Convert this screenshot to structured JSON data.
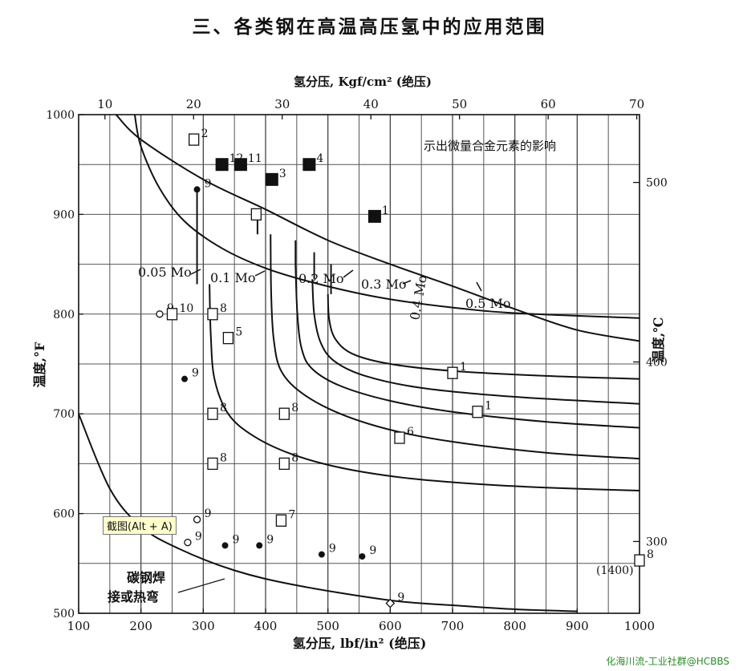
{
  "title": "三、各类钢在高温高压氢中的应用范围",
  "tooltip": "截图(Alt + A)",
  "watermark": "化海川流-工业社群@HCBBS",
  "chart_data": {
    "type": "line",
    "x_bottom": {
      "label": "氢分压, lbf/in² (绝压)",
      "min": 100,
      "max": 1000,
      "ticks": [
        100,
        200,
        300,
        400,
        500,
        600,
        700,
        800,
        900,
        1000
      ]
    },
    "x_top": {
      "label": "氢分压, Kgf/cm² (绝压)",
      "min": 7.03,
      "max": 70.3,
      "ticks": [
        10,
        20,
        30,
        40,
        50,
        60,
        70
      ]
    },
    "y_left": {
      "label": "温度,°F",
      "min": 500,
      "max": 1000,
      "ticks": [
        500,
        600,
        700,
        800,
        900,
        1000
      ]
    },
    "y_right": {
      "label": "温度,℃",
      "ticks": [
        300,
        400,
        500
      ]
    },
    "grid": true,
    "annotation": "示出微量合金元素的影响",
    "curve_labels": [
      "0.05 Mo",
      "0.1 Mo",
      "0.2 Mo",
      "0.3 Mo",
      "0.4 Mo",
      "0.5 Mo"
    ],
    "series": [
      {
        "name": "碳钢焊接或热弯",
        "points": [
          [
            100,
            700
          ],
          [
            150,
            625
          ],
          [
            200,
            587
          ],
          [
            260,
            565
          ],
          [
            350,
            543
          ],
          [
            450,
            528
          ],
          [
            600,
            513
          ],
          [
            700,
            508
          ],
          [
            800,
            504
          ],
          [
            900,
            502
          ]
        ]
      },
      {
        "name": "",
        "points": [
          [
            190,
            1000
          ],
          [
            200,
            968
          ],
          [
            230,
            926
          ],
          [
            270,
            893
          ],
          [
            330,
            866
          ],
          [
            400,
            846
          ],
          [
            480,
            831
          ],
          [
            580,
            817
          ],
          [
            680,
            808
          ],
          [
            800,
            801
          ],
          [
            1000,
            796
          ]
        ]
      },
      {
        "name": "",
        "points": [
          [
            310,
            830
          ],
          [
            312,
            780
          ],
          [
            318,
            735
          ],
          [
            340,
            700
          ],
          [
            380,
            678
          ],
          [
            440,
            660
          ],
          [
            520,
            646
          ],
          [
            620,
            636
          ],
          [
            730,
            630
          ],
          [
            850,
            626
          ],
          [
            1000,
            623
          ]
        ]
      },
      {
        "name": "",
        "points": [
          [
            408,
            880
          ],
          [
            409,
            820
          ],
          [
            413,
            775
          ],
          [
            425,
            743
          ],
          [
            460,
            720
          ],
          [
            520,
            700
          ],
          [
            600,
            684
          ],
          [
            700,
            672
          ],
          [
            850,
            661
          ],
          [
            1000,
            655
          ]
        ]
      },
      {
        "name": "",
        "points": [
          [
            448,
            850
          ],
          [
            451,
            800
          ],
          [
            458,
            765
          ],
          [
            475,
            745
          ],
          [
            520,
            728
          ],
          [
            600,
            713
          ],
          [
            700,
            702
          ],
          [
            850,
            692
          ],
          [
            1000,
            686
          ]
        ]
      },
      {
        "name": "",
        "points": [
          [
            475,
            835
          ],
          [
            478,
            800
          ],
          [
            488,
            772
          ],
          [
            510,
            753
          ],
          [
            560,
            738
          ],
          [
            650,
            726
          ],
          [
            800,
            717
          ],
          [
            1000,
            710
          ]
        ]
      },
      {
        "name": "",
        "points": [
          [
            500,
            820
          ],
          [
            502,
            795
          ],
          [
            512,
            775
          ],
          [
            540,
            760
          ],
          [
            600,
            750
          ],
          [
            700,
            743
          ],
          [
            850,
            738
          ],
          [
            1000,
            735
          ]
        ]
      },
      {
        "name": "",
        "points": [
          [
            160,
            1000
          ],
          [
            200,
            975
          ],
          [
            300,
            935
          ],
          [
            400,
            905
          ],
          [
            500,
            874
          ],
          [
            600,
            850
          ],
          [
            700,
            828
          ],
          [
            800,
            805
          ],
          [
            900,
            784
          ],
          [
            1000,
            773
          ]
        ]
      }
    ],
    "points": [
      {
        "label": "2",
        "x": 285,
        "y": 975,
        "marker": "open-square"
      },
      {
        "label": "12",
        "x": 330,
        "y": 950,
        "marker": "filled-square"
      },
      {
        "label": "11",
        "x": 360,
        "y": 950,
        "marker": "filled-square"
      },
      {
        "label": "4",
        "x": 470,
        "y": 950,
        "marker": "filled-square"
      },
      {
        "label": "3",
        "x": 410,
        "y": 935,
        "marker": "filled-square"
      },
      {
        "label": "9",
        "x": 290,
        "y": 925,
        "marker": "filled-circle"
      },
      {
        "label": "",
        "x": 385,
        "y": 900,
        "marker": "open-square"
      },
      {
        "label": "1",
        "x": 575,
        "y": 898,
        "marker": "filled-square"
      },
      {
        "label": "9",
        "x": 230,
        "y": 800,
        "marker": "open-circle"
      },
      {
        "label": "10",
        "x": 250,
        "y": 800,
        "marker": "open-square"
      },
      {
        "label": "8",
        "x": 315,
        "y": 800,
        "marker": "open-square"
      },
      {
        "label": "5",
        "x": 340,
        "y": 776,
        "marker": "open-square"
      },
      {
        "label": "1",
        "x": 700,
        "y": 741,
        "marker": "open-square"
      },
      {
        "label": "9",
        "x": 270,
        "y": 735,
        "marker": "filled-circle"
      },
      {
        "label": "8",
        "x": 315,
        "y": 700,
        "marker": "open-square"
      },
      {
        "label": "8",
        "x": 430,
        "y": 700,
        "marker": "open-square"
      },
      {
        "label": "1",
        "x": 740,
        "y": 702,
        "marker": "open-square"
      },
      {
        "label": "6",
        "x": 615,
        "y": 676,
        "marker": "open-square"
      },
      {
        "label": "8",
        "x": 315,
        "y": 650,
        "marker": "open-square"
      },
      {
        "label": "8",
        "x": 430,
        "y": 650,
        "marker": "open-square"
      },
      {
        "label": "9",
        "x": 290,
        "y": 594,
        "marker": "open-circle"
      },
      {
        "label": "7",
        "x": 425,
        "y": 593,
        "marker": "open-square"
      },
      {
        "label": "9",
        "x": 275,
        "y": 571,
        "marker": "open-circle"
      },
      {
        "label": "9",
        "x": 335,
        "y": 568,
        "marker": "filled-circle"
      },
      {
        "label": "9",
        "x": 390,
        "y": 568,
        "marker": "filled-circle"
      },
      {
        "label": "9",
        "x": 490,
        "y": 559,
        "marker": "filled-circle"
      },
      {
        "label": "9",
        "x": 555,
        "y": 557,
        "marker": "filled-circle"
      },
      {
        "label": "9",
        "x": 600,
        "y": 510,
        "marker": "open-diamond"
      },
      {
        "label": "8",
        "x": 1000,
        "y": 553,
        "marker": "open-square"
      }
    ],
    "extra_labels": [
      "(1400)",
      "碳钢焊",
      "接或热弯"
    ]
  }
}
